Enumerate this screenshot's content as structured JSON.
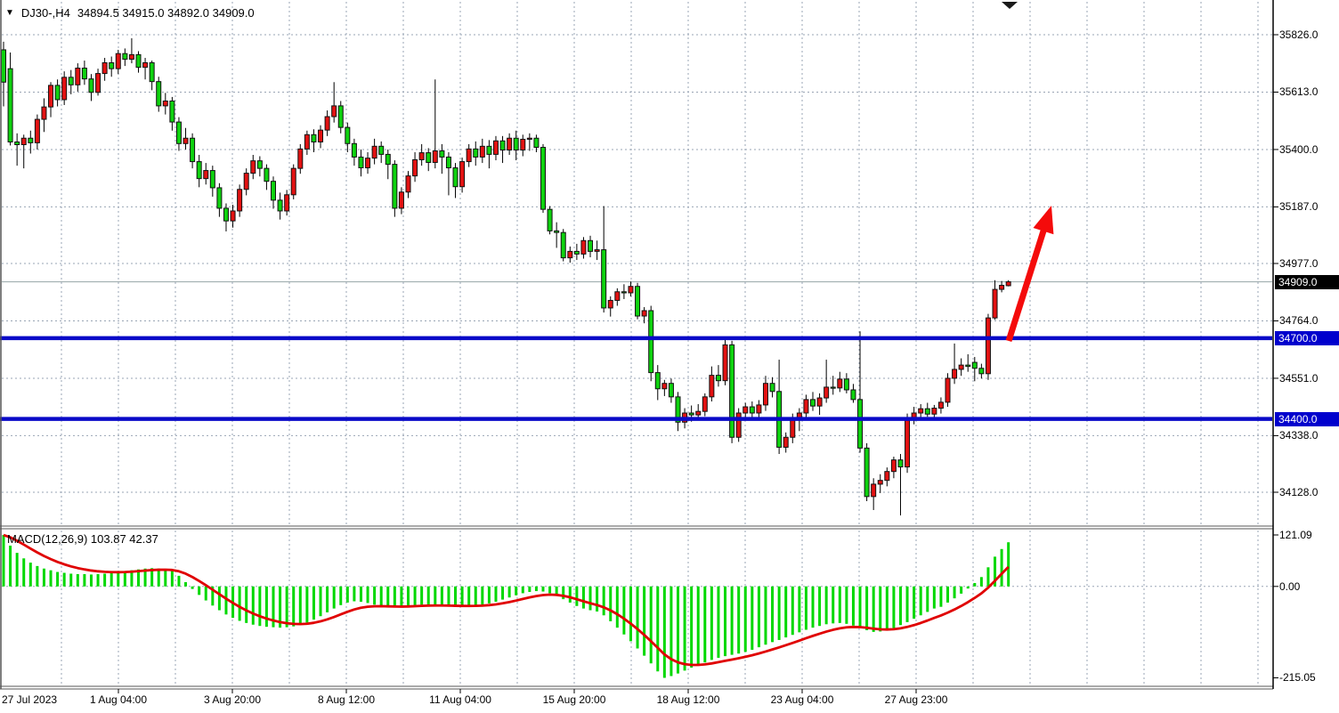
{
  "header": {
    "collapse_icon": "▼",
    "symbol": "DJ30-,H4",
    "ohlc": "34894.5 34915.0 34892.0 34909.0"
  },
  "macd_panel": {
    "label": "MACD(12,26,9) 103.87 42.37"
  },
  "price_axis": {
    "current_badge": "34909.0",
    "level_badges": [
      "34700.0",
      "34400.0"
    ]
  },
  "colors": {
    "up_candle": "#e31212",
    "down_candle": "#0fd20f",
    "candle_outline": "#111111",
    "grid": "#9aa5b5",
    "level_blue": "#0a0ac8",
    "macd_bar": "#00d800",
    "signal_line": "#e00000",
    "current_price_line": "#95a5a6",
    "arrow": "#f40b0b",
    "axis_border": "#555555"
  },
  "chart_data": [
    {
      "type": "candlestick",
      "symbol": "DJ30-",
      "timeframe": "H4",
      "title": "DJ30-,H4",
      "ohlc_header": {
        "open": 34894.5,
        "high": 34915.0,
        "low": 34892.0,
        "close": 34909.0
      },
      "current_price": 34909.0,
      "y_ticks": [
        35826.0,
        35613.0,
        35400.0,
        35187.0,
        34977.0,
        34764.0,
        34551.0,
        34338.0,
        34128.0
      ],
      "ylim": [
        34040,
        35850
      ],
      "grid": true,
      "levels": [
        {
          "price": 34700,
          "label": "34700.0"
        },
        {
          "price": 34400,
          "label": "34400.0"
        }
      ],
      "x_labels": [
        {
          "text": "27 Jul 2023",
          "x": 2,
          "align": "left"
        },
        {
          "text": "1 Aug 04:00",
          "x": 133,
          "align": "center"
        },
        {
          "text": "3 Aug 20:00",
          "x": 261,
          "align": "center"
        },
        {
          "text": "8 Aug 12:00",
          "x": 389,
          "align": "center"
        },
        {
          "text": "11 Aug 04:00",
          "x": 517,
          "align": "center"
        },
        {
          "text": "15 Aug 20:00",
          "x": 645,
          "align": "center"
        },
        {
          "text": "18 Aug 12:00",
          "x": 773,
          "align": "center"
        },
        {
          "text": "23 Aug 04:00",
          "x": 901,
          "align": "center"
        },
        {
          "text": "27 Aug 23:00",
          "x": 1029,
          "align": "center"
        }
      ],
      "annotation_arrow": {
        "x1": 1133,
        "y1": 383,
        "x2": 1181,
        "y2": 231
      },
      "candles": [
        [
          35770,
          35800,
          35560,
          35650
        ],
        [
          35700,
          35760,
          35415,
          35428
        ],
        [
          35428,
          35460,
          35340,
          35418
        ],
        [
          35418,
          35455,
          35330,
          35442
        ],
        [
          35442,
          35470,
          35385,
          35425
        ],
        [
          35425,
          35530,
          35400,
          35512
        ],
        [
          35512,
          35590,
          35465,
          35558
        ],
        [
          35558,
          35650,
          35520,
          35638
        ],
        [
          35638,
          35660,
          35560,
          35585
        ],
        [
          35585,
          35690,
          35565,
          35668
        ],
        [
          35668,
          35695,
          35605,
          35640
        ],
        [
          35640,
          35720,
          35615,
          35702
        ],
        [
          35702,
          35730,
          35640,
          35662
        ],
        [
          35662,
          35680,
          35580,
          35612
        ],
        [
          35612,
          35700,
          35600,
          35682
        ],
        [
          35682,
          35740,
          35655,
          35722
        ],
        [
          35722,
          35745,
          35670,
          35700
        ],
        [
          35700,
          35770,
          35680,
          35756
        ],
        [
          35756,
          35775,
          35710,
          35735
        ],
        [
          35735,
          35813,
          35720,
          35752
        ],
        [
          35752,
          35765,
          35685,
          35705
        ],
        [
          35705,
          35740,
          35660,
          35722
        ],
        [
          35722,
          35730,
          35620,
          35652
        ],
        [
          35652,
          35670,
          35540,
          35562
        ],
        [
          35562,
          35610,
          35530,
          35580
        ],
        [
          35580,
          35595,
          35470,
          35502
        ],
        [
          35502,
          35520,
          35395,
          35422
        ],
        [
          35422,
          35480,
          35400,
          35442
        ],
        [
          35442,
          35460,
          35330,
          35355
        ],
        [
          35355,
          35380,
          35260,
          35292
        ],
        [
          35292,
          35350,
          35270,
          35322
        ],
        [
          35322,
          35340,
          35225,
          35258
        ],
        [
          35258,
          35275,
          35150,
          35182
        ],
        [
          35182,
          35200,
          35096,
          35135
        ],
        [
          35135,
          35195,
          35110,
          35172
        ],
        [
          35172,
          35270,
          35150,
          35252
        ],
        [
          35252,
          35330,
          35230,
          35312
        ],
        [
          35312,
          35380,
          35290,
          35358
        ],
        [
          35358,
          35375,
          35300,
          35330
        ],
        [
          35330,
          35345,
          35250,
          35282
        ],
        [
          35282,
          35300,
          35180,
          35212
        ],
        [
          35212,
          35240,
          35140,
          35172
        ],
        [
          35172,
          35250,
          35155,
          35232
        ],
        [
          35232,
          35345,
          35215,
          35330
        ],
        [
          35330,
          35420,
          35310,
          35402
        ],
        [
          35402,
          35470,
          35380,
          35455
        ],
        [
          35455,
          35475,
          35390,
          35428
        ],
        [
          35428,
          35490,
          35405,
          35472
        ],
        [
          35472,
          35545,
          35450,
          35522
        ],
        [
          35522,
          35650,
          35500,
          35562
        ],
        [
          35562,
          35580,
          35460,
          35482
        ],
        [
          35482,
          35500,
          35390,
          35422
        ],
        [
          35422,
          35440,
          35340,
          35372
        ],
        [
          35372,
          35400,
          35300,
          35332
        ],
        [
          35332,
          35390,
          35310,
          35368
        ],
        [
          35368,
          35440,
          35345,
          35412
        ],
        [
          35412,
          35430,
          35350,
          35382
        ],
        [
          35382,
          35400,
          35290,
          35345
        ],
        [
          35345,
          35360,
          35150,
          35182
        ],
        [
          35182,
          35260,
          35160,
          35242
        ],
        [
          35242,
          35320,
          35220,
          35302
        ],
        [
          35302,
          35390,
          35280,
          35362
        ],
        [
          35362,
          35420,
          35340,
          35388
        ],
        [
          35388,
          35405,
          35320,
          35352
        ],
        [
          35352,
          35660,
          35330,
          35395
        ],
        [
          35395,
          35420,
          35310,
          35372
        ],
        [
          35372,
          35390,
          35230,
          35332
        ],
        [
          35332,
          35350,
          35220,
          35262
        ],
        [
          35262,
          35370,
          35240,
          35355
        ],
        [
          35355,
          35420,
          35335,
          35402
        ],
        [
          35402,
          35430,
          35340,
          35372
        ],
        [
          35372,
          35440,
          35350,
          35412
        ],
        [
          35412,
          35435,
          35330,
          35382
        ],
        [
          35382,
          35450,
          35360,
          35432
        ],
        [
          35432,
          35450,
          35350,
          35398
        ],
        [
          35398,
          35460,
          35380,
          35442
        ],
        [
          35442,
          35470,
          35360,
          35398
        ],
        [
          35398,
          35455,
          35375,
          35438
        ],
        [
          35438,
          35460,
          35395,
          35442
        ],
        [
          35442,
          35455,
          35390,
          35408
        ],
        [
          35408,
          35420,
          35165,
          35178
        ],
        [
          35178,
          35190,
          35085,
          35098
        ],
        [
          35098,
          35130,
          35035,
          35092
        ],
        [
          35092,
          35105,
          34985,
          34998
        ],
        [
          34998,
          35040,
          34980,
          35022
        ],
        [
          35022,
          35050,
          34990,
          35012
        ],
        [
          35012,
          35075,
          34995,
          35062
        ],
        [
          35062,
          35080,
          35000,
          35022
        ],
        [
          35022,
          35062,
          34990,
          35028
        ],
        [
          35028,
          35190,
          34795,
          34812
        ],
        [
          34812,
          34855,
          34780,
          34840
        ],
        [
          34840,
          34885,
          34820,
          34872
        ],
        [
          34872,
          34900,
          34845,
          34868
        ],
        [
          34868,
          34910,
          34855,
          34892
        ],
        [
          34892,
          34905,
          34770,
          34782
        ],
        [
          34782,
          34815,
          34755,
          34802
        ],
        [
          34802,
          34820,
          34540,
          34572
        ],
        [
          34572,
          34600,
          34470,
          34512
        ],
        [
          34512,
          34545,
          34485,
          34532
        ],
        [
          34532,
          34550,
          34460,
          34482
        ],
        [
          34482,
          34500,
          34355,
          34388
        ],
        [
          34388,
          34440,
          34365,
          34422
        ],
        [
          34422,
          34450,
          34390,
          34415
        ],
        [
          34415,
          34455,
          34395,
          34428
        ],
        [
          34428,
          34495,
          34410,
          34482
        ],
        [
          34482,
          34595,
          34465,
          34562
        ],
        [
          34562,
          34600,
          34520,
          34542
        ],
        [
          34542,
          34700,
          34525,
          34675
        ],
        [
          34675,
          34690,
          34310,
          34332
        ],
        [
          34332,
          34440,
          34315,
          34422
        ],
        [
          34422,
          34460,
          34400,
          34445
        ],
        [
          34445,
          34465,
          34405,
          34422
        ],
        [
          34422,
          34470,
          34400,
          34452
        ],
        [
          34452,
          34560,
          34430,
          34532
        ],
        [
          34532,
          34555,
          34480,
          34502
        ],
        [
          34502,
          34620,
          34270,
          34295
        ],
        [
          34295,
          34350,
          34275,
          34332
        ],
        [
          34332,
          34420,
          34310,
          34398
        ],
        [
          34398,
          34440,
          34355,
          34422
        ],
        [
          34422,
          34490,
          34405,
          34472
        ],
        [
          34472,
          34500,
          34430,
          34448
        ],
        [
          34448,
          34495,
          34415,
          34478
        ],
        [
          34478,
          34620,
          34460,
          34518
        ],
        [
          34518,
          34560,
          34490,
          34515
        ],
        [
          34515,
          34575,
          34500,
          34548
        ],
        [
          34548,
          34570,
          34495,
          34508
        ],
        [
          34508,
          34530,
          34460,
          34472
        ],
        [
          34472,
          34725,
          34275,
          34292
        ],
        [
          34292,
          34310,
          34095,
          34112
        ],
        [
          34112,
          34180,
          34062,
          34158
        ],
        [
          34158,
          34195,
          34125,
          34172
        ],
        [
          34172,
          34220,
          34150,
          34205
        ],
        [
          34205,
          34260,
          34180,
          34248
        ],
        [
          34248,
          34270,
          34042,
          34222
        ],
        [
          34222,
          34420,
          34200,
          34398
        ],
        [
          34398,
          34445,
          34380,
          34422
        ],
        [
          34422,
          34455,
          34400,
          34438
        ],
        [
          34438,
          34460,
          34408,
          34418
        ],
        [
          34418,
          34452,
          34400,
          34440
        ],
        [
          34440,
          34480,
          34420,
          34462
        ],
        [
          34462,
          34570,
          34445,
          34551
        ],
        [
          34551,
          34680,
          34530,
          34584
        ],
        [
          34584,
          34625,
          34560,
          34600
        ],
        [
          34600,
          34640,
          34575,
          34595
        ],
        [
          34610,
          34630,
          34540,
          34588
        ],
        [
          34588,
          34605,
          34550,
          34568
        ],
        [
          34568,
          34790,
          34545,
          34775
        ],
        [
          34775,
          34915,
          34768,
          34881
        ],
        [
          34881,
          34912,
          34870,
          34896
        ],
        [
          34894.5,
          34915,
          34892,
          34909
        ]
      ]
    },
    {
      "type": "bar",
      "name": "MACD(12,26,9)",
      "params": "12,26,9",
      "macd_value": 103.87,
      "signal_value": 42.37,
      "y_ticks": [
        121.09,
        0.0,
        -215.05
      ],
      "ylim": [
        -230,
        135
      ],
      "signal_note": "red EMA(9) signal line over green MACD histogram",
      "values": [
        121,
        96,
        79,
        66,
        56,
        48,
        42,
        38,
        34,
        32,
        30,
        29,
        29,
        28,
        29,
        30,
        31,
        33,
        35,
        38,
        40,
        42,
        43,
        42,
        40,
        36,
        25,
        10,
        -6,
        -20,
        -33,
        -45,
        -56,
        -66,
        -74,
        -81,
        -86,
        -90,
        -93,
        -95,
        -96,
        -97,
        -96,
        -94,
        -90,
        -85,
        -78,
        -70,
        -61,
        -52,
        -44,
        -38,
        -35,
        -36,
        -39,
        -43,
        -46,
        -48,
        -49,
        -48,
        -46,
        -44,
        -43,
        -43,
        -44,
        -45,
        -46,
        -47,
        -47,
        -46,
        -45,
        -43,
        -40,
        -36,
        -31,
        -26,
        -21,
        -16,
        -13,
        -11,
        -12,
        -16,
        -22,
        -30,
        -38,
        -46,
        -52,
        -56,
        -59,
        -68,
        -82,
        -97,
        -113,
        -129,
        -146,
        -163,
        -181,
        -200,
        -215,
        -211,
        -205,
        -198,
        -191,
        -185,
        -179,
        -173,
        -168,
        -164,
        -161,
        -158,
        -154,
        -149,
        -143,
        -137,
        -131,
        -126,
        -120,
        -114,
        -108,
        -102,
        -97,
        -93,
        -89,
        -87,
        -86,
        -88,
        -92,
        -97,
        -103,
        -107,
        -106,
        -103,
        -98,
        -91,
        -84,
        -76,
        -68,
        -60,
        -52,
        -48,
        -38,
        -28,
        -17,
        -5,
        8,
        22,
        45,
        70,
        88,
        103.87
      ]
    }
  ]
}
